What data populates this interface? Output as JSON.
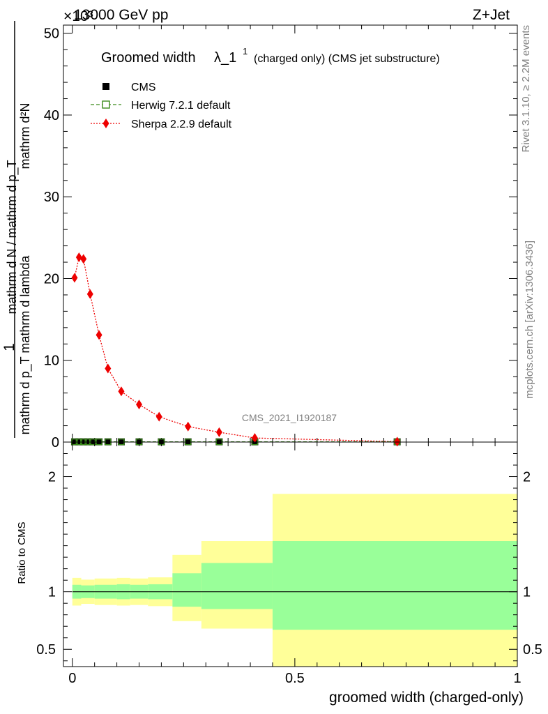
{
  "header": {
    "left": "13000 GeV pp",
    "right": "Z+Jet",
    "exponent": "×10³"
  },
  "side_labels": {
    "rivet": "Rivet 3.1.10, ≥ 2.2M events",
    "mcplots": "mcplots.cern.ch [arXiv:1306.3436]"
  },
  "colors": {
    "cms": "#000000",
    "herwig": "#3a8a1a",
    "sherpa": "#ee0000",
    "band_stat": "#99ff99",
    "band_total": "#ffff99"
  },
  "chart_data": [
    {
      "type": "line",
      "title_main": "Groomed width",
      "title_lambda": "λ_1",
      "title_sup": "1",
      "title_tail": "(charged only) (CMS jet substructure)",
      "analysis_id": "CMS_2021_I1920187",
      "ylabel": {
        "one": "1",
        "top": "mathrm d²N",
        "bottom": "mathrm d p_T mathrm d lambda",
        "left": "mathrm d N / mathrm d p_T"
      },
      "xlim": [
        -0.02,
        1.0
      ],
      "ylim": [
        0,
        51
      ],
      "yticks": [
        0,
        10,
        20,
        30,
        40,
        50
      ],
      "legend": [
        {
          "name": "CMS",
          "marker": "filled-square"
        },
        {
          "name": "Herwig 7.2.1 default",
          "marker": "open-square-dashed"
        },
        {
          "name": "Sherpa 2.2.9 default",
          "marker": "diamond-dotted"
        }
      ],
      "series": [
        {
          "name": "CMS",
          "x": [
            0.005,
            0.015,
            0.025,
            0.035,
            0.045,
            0.06,
            0.08,
            0.11,
            0.15,
            0.2,
            0.26,
            0.33,
            0.41,
            0.73
          ],
          "y": [
            0.03,
            0.03,
            0.03,
            0.03,
            0.03,
            0.03,
            0.03,
            0.03,
            0.03,
            0.03,
            0.03,
            0.03,
            0.03,
            0.03
          ]
        },
        {
          "name": "Herwig 7.2.1 default",
          "x": [
            0.005,
            0.015,
            0.025,
            0.035,
            0.045,
            0.06,
            0.08,
            0.11,
            0.15,
            0.2,
            0.26,
            0.33,
            0.41,
            0.73
          ],
          "y": [
            0.03,
            0.03,
            0.03,
            0.03,
            0.03,
            0.03,
            0.03,
            0.03,
            0.03,
            0.03,
            0.03,
            0.03,
            0.03,
            0.03
          ]
        },
        {
          "name": "Sherpa 2.2.9 default",
          "x": [
            0.005,
            0.015,
            0.025,
            0.04,
            0.06,
            0.08,
            0.11,
            0.15,
            0.195,
            0.26,
            0.33,
            0.41,
            0.73
          ],
          "y": [
            20.1,
            22.6,
            22.4,
            18.1,
            13.1,
            9.0,
            6.2,
            4.6,
            3.1,
            1.9,
            1.2,
            0.5,
            0.05
          ]
        }
      ]
    },
    {
      "type": "area",
      "ylabel": "Ratio to CMS",
      "xlabel": "groomed width (charged-only)",
      "xlim": [
        -0.02,
        1.0
      ],
      "ylim": [
        0.35,
        2.3
      ],
      "yticks": [
        0.5,
        1,
        2
      ],
      "xticks": [
        0,
        0.5,
        1
      ],
      "bins": [
        {
          "lo": 0.0,
          "hi": 0.02,
          "stat_lo": 0.94,
          "stat_hi": 1.06,
          "tot_lo": 0.88,
          "tot_hi": 1.12
        },
        {
          "lo": 0.02,
          "hi": 0.05,
          "stat_lo": 0.945,
          "stat_hi": 1.055,
          "tot_lo": 0.895,
          "tot_hi": 1.105
        },
        {
          "lo": 0.05,
          "hi": 0.1,
          "stat_lo": 0.94,
          "stat_hi": 1.06,
          "tot_lo": 0.885,
          "tot_hi": 1.115
        },
        {
          "lo": 0.1,
          "hi": 0.13,
          "stat_lo": 0.935,
          "stat_hi": 1.065,
          "tot_lo": 0.88,
          "tot_hi": 1.12
        },
        {
          "lo": 0.13,
          "hi": 0.17,
          "stat_lo": 0.94,
          "stat_hi": 1.06,
          "tot_lo": 0.885,
          "tot_hi": 1.115
        },
        {
          "lo": 0.17,
          "hi": 0.225,
          "stat_lo": 0.935,
          "stat_hi": 1.065,
          "tot_lo": 0.875,
          "tot_hi": 1.125
        },
        {
          "lo": 0.225,
          "hi": 0.29,
          "stat_lo": 0.87,
          "stat_hi": 1.16,
          "tot_lo": 0.745,
          "tot_hi": 1.32
        },
        {
          "lo": 0.29,
          "hi": 0.45,
          "stat_lo": 0.85,
          "stat_hi": 1.25,
          "tot_lo": 0.68,
          "tot_hi": 1.44
        },
        {
          "lo": 0.45,
          "hi": 1.0,
          "stat_lo": 0.67,
          "stat_hi": 1.44,
          "tot_lo": 0.35,
          "tot_hi": 1.85
        }
      ],
      "reference": 1
    }
  ]
}
